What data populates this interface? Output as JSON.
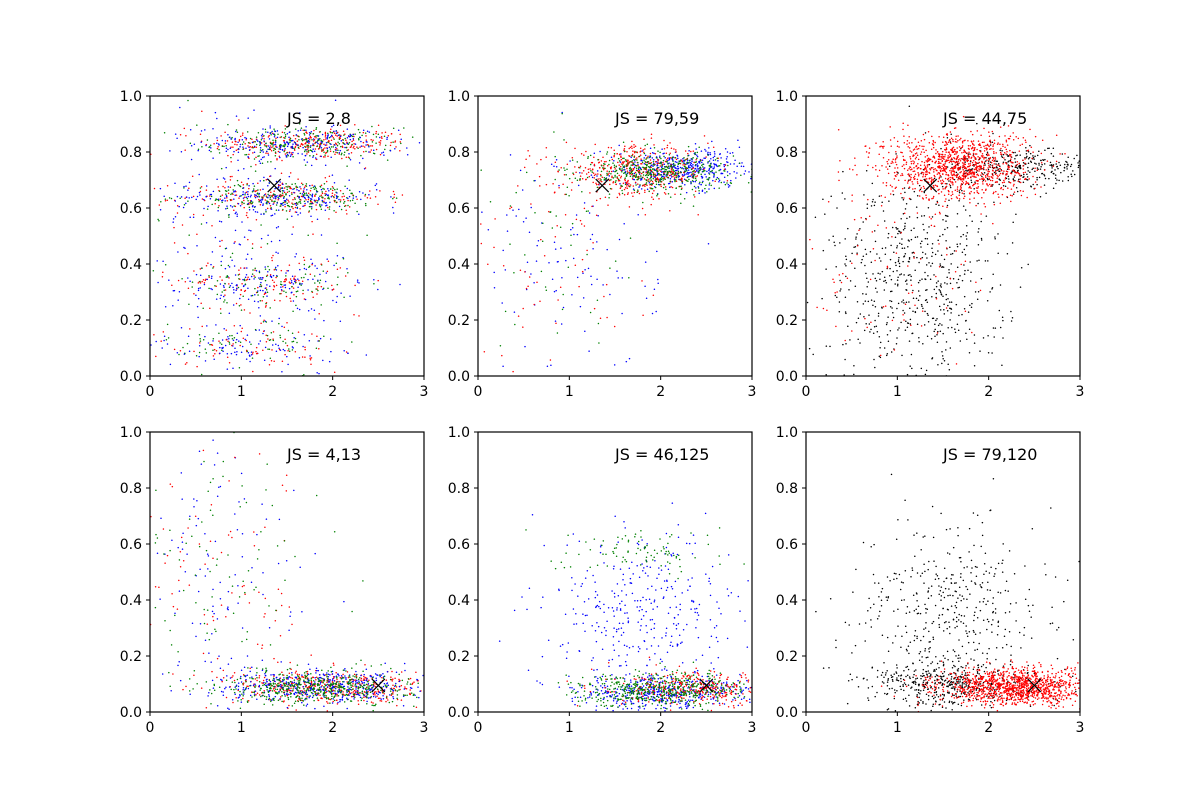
{
  "figure": {
    "layout": "2x3 grid of scatter subplots",
    "point_colors": [
      "#0000ff",
      "#ff0000",
      "#008000",
      "#000000"
    ],
    "marker_color": "#000000"
  },
  "chart_data": [
    {
      "type": "scatter",
      "title": "",
      "annotation": "JS = 2,8",
      "xlim": [
        0,
        3
      ],
      "ylim": [
        0,
        1
      ],
      "xticks": [
        "0",
        "1",
        "2",
        "3"
      ],
      "yticks": [
        "0.0",
        "0.2",
        "0.4",
        "0.6",
        "0.8",
        "1.0"
      ],
      "grid": false,
      "marker": {
        "symbol": "x",
        "x": 1.36,
        "y": 0.68
      },
      "clusters": [
        {
          "color": "#ff0000",
          "cx": 1.75,
          "cy": 0.83,
          "sx": 0.55,
          "sy": 0.028,
          "n": 280
        },
        {
          "color": "#008000",
          "cx": 1.7,
          "cy": 0.83,
          "sx": 0.5,
          "sy": 0.028,
          "n": 240
        },
        {
          "color": "#0000ff",
          "cx": 1.6,
          "cy": 0.83,
          "sx": 0.55,
          "sy": 0.03,
          "n": 220
        },
        {
          "color": "#ff0000",
          "cx": 1.45,
          "cy": 0.64,
          "sx": 0.55,
          "sy": 0.03,
          "n": 200
        },
        {
          "color": "#008000",
          "cx": 1.55,
          "cy": 0.64,
          "sx": 0.5,
          "sy": 0.028,
          "n": 220
        },
        {
          "color": "#0000ff",
          "cx": 1.4,
          "cy": 0.64,
          "sx": 0.55,
          "sy": 0.03,
          "n": 200
        },
        {
          "color": "#ff0000",
          "cx": 1.25,
          "cy": 0.33,
          "sx": 0.5,
          "sy": 0.04,
          "n": 110
        },
        {
          "color": "#0000ff",
          "cx": 1.3,
          "cy": 0.33,
          "sx": 0.5,
          "sy": 0.04,
          "n": 120
        },
        {
          "color": "#008000",
          "cx": 1.3,
          "cy": 0.33,
          "sx": 0.45,
          "sy": 0.04,
          "n": 90
        },
        {
          "color": "#0000ff",
          "cx": 1.1,
          "cy": 0.11,
          "sx": 0.5,
          "sy": 0.04,
          "n": 90
        },
        {
          "color": "#ff0000",
          "cx": 1.05,
          "cy": 0.11,
          "sx": 0.5,
          "sy": 0.04,
          "n": 70
        },
        {
          "color": "#008000",
          "cx": 1.1,
          "cy": 0.11,
          "sx": 0.45,
          "sy": 0.04,
          "n": 60
        },
        {
          "color": "#0000ff",
          "cx": 1.1,
          "cy": 0.5,
          "sx": 0.6,
          "sy": 0.25,
          "n": 180
        },
        {
          "color": "#ff0000",
          "cx": 1.1,
          "cy": 0.5,
          "sx": 0.6,
          "sy": 0.25,
          "n": 90
        },
        {
          "color": "#008000",
          "cx": 1.1,
          "cy": 0.5,
          "sx": 0.6,
          "sy": 0.25,
          "n": 60
        }
      ]
    },
    {
      "type": "scatter",
      "title": "",
      "annotation": "JS = 79,59",
      "xlim": [
        0,
        3
      ],
      "ylim": [
        0,
        1
      ],
      "xticks": [
        "0",
        "1",
        "2",
        "3"
      ],
      "yticks": [
        "0.0",
        "0.2",
        "0.4",
        "0.6",
        "0.8",
        "1.0"
      ],
      "grid": false,
      "marker": {
        "symbol": "x",
        "x": 1.36,
        "y": 0.68
      },
      "clusters": [
        {
          "color": "#0000ff",
          "cx": 2.25,
          "cy": 0.74,
          "sx": 0.45,
          "sy": 0.035,
          "n": 450
        },
        {
          "color": "#ff0000",
          "cx": 1.75,
          "cy": 0.73,
          "sx": 0.4,
          "sy": 0.045,
          "n": 450
        },
        {
          "color": "#008000",
          "cx": 1.95,
          "cy": 0.73,
          "sx": 0.4,
          "sy": 0.035,
          "n": 450
        },
        {
          "color": "#0000ff",
          "cx": 1.0,
          "cy": 0.4,
          "sx": 0.5,
          "sy": 0.2,
          "n": 110
        },
        {
          "color": "#ff0000",
          "cx": 0.9,
          "cy": 0.4,
          "sx": 0.5,
          "sy": 0.2,
          "n": 70
        },
        {
          "color": "#008000",
          "cx": 0.9,
          "cy": 0.5,
          "sx": 0.5,
          "sy": 0.2,
          "n": 50
        }
      ]
    },
    {
      "type": "scatter",
      "title": "",
      "annotation": "JS = 44,75",
      "xlim": [
        0,
        3
      ],
      "ylim": [
        0,
        1
      ],
      "xticks": [
        "0",
        "1",
        "2",
        "3"
      ],
      "yticks": [
        "0.0",
        "0.2",
        "0.4",
        "0.6",
        "0.8",
        "1.0"
      ],
      "grid": false,
      "marker": {
        "symbol": "x",
        "x": 1.36,
        "y": 0.68
      },
      "clusters": [
        {
          "color": "#000000",
          "cx": 2.3,
          "cy": 0.74,
          "sx": 0.45,
          "sy": 0.035,
          "n": 350
        },
        {
          "color": "#000000",
          "cx": 1.2,
          "cy": 0.35,
          "sx": 0.5,
          "sy": 0.2,
          "n": 650
        },
        {
          "color": "#ff0000",
          "cx": 1.65,
          "cy": 0.75,
          "sx": 0.4,
          "sy": 0.06,
          "n": 1100
        },
        {
          "color": "#ff0000",
          "cx": 1.1,
          "cy": 0.4,
          "sx": 0.5,
          "sy": 0.22,
          "n": 100
        }
      ]
    },
    {
      "type": "scatter",
      "title": "",
      "annotation": "JS = 4,13",
      "xlim": [
        0,
        3
      ],
      "ylim": [
        0,
        1
      ],
      "xticks": [
        "0",
        "1",
        "2",
        "3"
      ],
      "yticks": [
        "0.0",
        "0.2",
        "0.4",
        "0.6",
        "0.8",
        "1.0"
      ],
      "grid": false,
      "marker": {
        "symbol": "x",
        "x": 2.5,
        "y": 0.095
      },
      "clusters": [
        {
          "color": "#ff0000",
          "cx": 2.0,
          "cy": 0.09,
          "sx": 0.55,
          "sy": 0.03,
          "n": 450
        },
        {
          "color": "#0000ff",
          "cx": 1.9,
          "cy": 0.09,
          "sx": 0.55,
          "sy": 0.03,
          "n": 450
        },
        {
          "color": "#008000",
          "cx": 1.85,
          "cy": 0.09,
          "sx": 0.5,
          "sy": 0.03,
          "n": 500
        },
        {
          "color": "#0000ff",
          "cx": 0.8,
          "cy": 0.45,
          "sx": 0.5,
          "sy": 0.25,
          "n": 110
        },
        {
          "color": "#ff0000",
          "cx": 0.8,
          "cy": 0.45,
          "sx": 0.5,
          "sy": 0.25,
          "n": 90
        },
        {
          "color": "#008000",
          "cx": 0.8,
          "cy": 0.45,
          "sx": 0.5,
          "sy": 0.25,
          "n": 90
        }
      ]
    },
    {
      "type": "scatter",
      "title": "",
      "annotation": "JS = 46,125",
      "xlim": [
        0,
        3
      ],
      "ylim": [
        0,
        1
      ],
      "xticks": [
        "0",
        "1",
        "2",
        "3"
      ],
      "yticks": [
        "0.0",
        "0.2",
        "0.4",
        "0.6",
        "0.8",
        "1.0"
      ],
      "grid": false,
      "marker": {
        "symbol": "x",
        "x": 2.5,
        "y": 0.095
      },
      "clusters": [
        {
          "color": "#0000ff",
          "cx": 2.0,
          "cy": 0.07,
          "sx": 0.5,
          "sy": 0.03,
          "n": 450
        },
        {
          "color": "#ff0000",
          "cx": 2.4,
          "cy": 0.08,
          "sx": 0.45,
          "sy": 0.03,
          "n": 350
        },
        {
          "color": "#008000",
          "cx": 2.0,
          "cy": 0.08,
          "sx": 0.45,
          "sy": 0.03,
          "n": 500
        },
        {
          "color": "#0000ff",
          "cx": 1.8,
          "cy": 0.35,
          "sx": 0.5,
          "sy": 0.15,
          "n": 350
        },
        {
          "color": "#008000",
          "cx": 1.8,
          "cy": 0.57,
          "sx": 0.45,
          "sy": 0.04,
          "n": 90
        }
      ]
    },
    {
      "type": "scatter",
      "title": "",
      "annotation": "JS = 79,120",
      "xlim": [
        0,
        3
      ],
      "ylim": [
        0,
        1
      ],
      "xticks": [
        "0",
        "1",
        "2",
        "3"
      ],
      "yticks": [
        "0.0",
        "0.2",
        "0.4",
        "0.6",
        "0.8",
        "1.0"
      ],
      "grid": false,
      "marker": {
        "symbol": "x",
        "x": 2.5,
        "y": 0.095
      },
      "clusters": [
        {
          "color": "#000000",
          "cx": 1.6,
          "cy": 0.1,
          "sx": 0.45,
          "sy": 0.04,
          "n": 450
        },
        {
          "color": "#000000",
          "cx": 1.6,
          "cy": 0.35,
          "sx": 0.5,
          "sy": 0.17,
          "n": 450
        },
        {
          "color": "#ff0000",
          "cx": 2.3,
          "cy": 0.09,
          "sx": 0.42,
          "sy": 0.032,
          "n": 1200
        }
      ]
    }
  ]
}
